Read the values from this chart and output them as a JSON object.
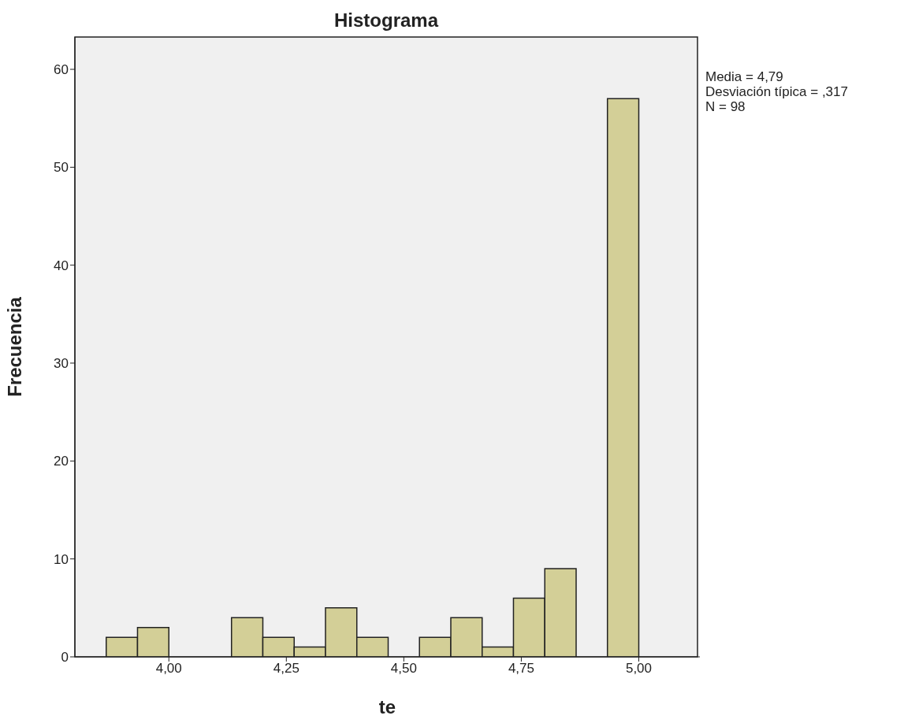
{
  "chart_data": {
    "type": "histogram",
    "title": "Histograma",
    "xlabel": "te",
    "ylabel": "Frecuencia",
    "annotations": [
      "Media = 4,79",
      "Desviación típica = ,317",
      "N = 98"
    ],
    "bins": [
      3.8667,
      3.9333,
      4.0,
      4.0667,
      4.1333,
      4.2,
      4.2667,
      4.3333,
      4.4,
      4.4667,
      4.5333,
      4.6,
      4.6667,
      4.7333,
      4.8,
      4.8667,
      4.9333,
      5.0
    ],
    "values": [
      2,
      3,
      0,
      0,
      4,
      2,
      1,
      5,
      2,
      0,
      2,
      4,
      1,
      6,
      9,
      0,
      57
    ],
    "color": "#d3cf97",
    "xlim": [
      3.8,
      5.13
    ],
    "ylim": [
      0,
      63.3
    ],
    "xticks": [
      {
        "value": 4,
        "label": "4,00"
      },
      {
        "value": 4.25,
        "label": "4,25"
      },
      {
        "value": 4.5,
        "label": "4,50"
      },
      {
        "value": 4.75,
        "label": "4,75"
      },
      {
        "value": 5,
        "label": "5,00"
      }
    ],
    "yticks": [
      0,
      10,
      20,
      30,
      40,
      50,
      60
    ],
    "grid": false
  }
}
